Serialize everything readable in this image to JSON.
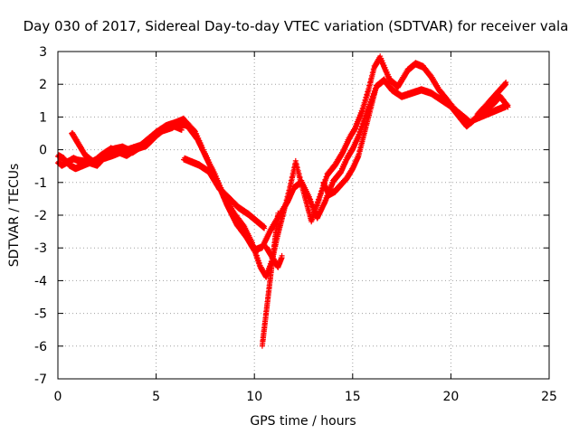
{
  "chart_data": {
    "type": "scatter",
    "title": "Day 030 of 2017, Sidereal Day-to-day VTEC variation (SDTVAR) for receiver vala",
    "xlabel": "GPS time / hours",
    "ylabel": "SDTVAR / TECUs",
    "xlim": [
      0,
      25
    ],
    "ylim": [
      -7,
      3
    ],
    "xticks": [
      "0",
      "5",
      "10",
      "15",
      "20",
      "25"
    ],
    "yticks": [
      "3",
      "2",
      "1",
      "0",
      "-1",
      "-2",
      "-3",
      "-4",
      "-5",
      "-6",
      "-7"
    ],
    "grid": true,
    "legend": "none",
    "marker": "plus",
    "color": "#ff0000",
    "series": [
      {
        "x": [
          0.0,
          0.2,
          0.5,
          0.8,
          1.0,
          1.5,
          2.0,
          2.3,
          2.8,
          3.2,
          3.7,
          4.2,
          4.6,
          5.0,
          5.5,
          6.0,
          6.4,
          7.0,
          7.5,
          8.0,
          8.5,
          9.0,
          9.5,
          9.9,
          10.3,
          10.6,
          10.9,
          11.2,
          11.5,
          11.8,
          12.1,
          12.5,
          12.9,
          13.3,
          13.7,
          14.1,
          14.5,
          14.8,
          15.1,
          15.5,
          15.8,
          16.1,
          16.4,
          16.9,
          17.3,
          17.8,
          18.2,
          18.6,
          19.0,
          19.4,
          19.8,
          20.2,
          20.6,
          21.0,
          21.4,
          21.8,
          22.2,
          22.5,
          22.9
        ],
        "y": [
          -0.4,
          -0.5,
          -0.4,
          -0.3,
          -0.35,
          -0.4,
          -0.5,
          -0.3,
          -0.2,
          -0.1,
          0.0,
          0.1,
          0.3,
          0.5,
          0.7,
          0.8,
          0.9,
          0.5,
          -0.2,
          -0.8,
          -1.5,
          -2.0,
          -2.4,
          -2.9,
          -3.6,
          -3.9,
          -3.4,
          -2.6,
          -1.9,
          -1.2,
          -0.4,
          -1.3,
          -2.2,
          -1.5,
          -0.8,
          -0.5,
          -0.1,
          0.3,
          0.6,
          1.2,
          1.8,
          2.5,
          2.8,
          2.1,
          1.9,
          2.4,
          2.6,
          2.5,
          2.2,
          1.8,
          1.5,
          1.2,
          1.0,
          0.8,
          1.0,
          1.2,
          1.4,
          1.6,
          1.3
        ]
      },
      {
        "x": [
          0.0,
          0.3,
          0.6,
          0.9,
          1.3,
          1.7,
          2.1,
          2.5,
          2.9,
          3.3,
          3.8,
          4.3,
          4.8,
          5.3,
          5.8,
          6.2,
          6.6,
          7.1,
          7.6,
          8.1,
          8.6,
          9.1,
          9.6,
          10.0,
          10.4,
          10.8,
          11.3,
          11.7,
          12.0,
          12.4,
          12.8,
          13.2,
          13.6,
          14.0,
          14.4,
          14.7,
          15.0,
          15.3,
          15.6,
          15.9,
          16.2,
          16.6,
          17.0,
          17.5,
          18.0,
          18.5,
          19.0,
          19.5,
          20.0,
          20.4,
          20.8,
          21.2,
          21.6,
          22.0,
          22.4,
          22.8
        ],
        "y": [
          -0.2,
          -0.3,
          -0.5,
          -0.6,
          -0.5,
          -0.4,
          -0.3,
          -0.1,
          0.0,
          0.05,
          -0.1,
          0.1,
          0.35,
          0.55,
          0.65,
          0.8,
          0.7,
          0.3,
          -0.3,
          -1.0,
          -1.7,
          -2.3,
          -2.7,
          -3.1,
          -3.0,
          -2.5,
          -2.0,
          -1.6,
          -1.2,
          -1.0,
          -1.5,
          -2.1,
          -1.6,
          -1.0,
          -0.7,
          -0.3,
          0.0,
          0.4,
          0.9,
          1.4,
          1.9,
          2.1,
          1.8,
          1.6,
          1.7,
          1.8,
          1.7,
          1.5,
          1.3,
          1.0,
          0.7,
          0.9,
          1.0,
          1.1,
          1.2,
          1.3
        ]
      },
      {
        "x": [
          0.7,
          1.0,
          1.4,
          1.8,
          2.2,
          2.7,
          3.1,
          3.5,
          4.0,
          4.5,
          5.0,
          5.4,
          5.9,
          6.3
        ],
        "y": [
          0.5,
          0.2,
          -0.2,
          -0.4,
          -0.2,
          0.0,
          -0.1,
          -0.2,
          0.0,
          0.1,
          0.4,
          0.6,
          0.7,
          0.6
        ]
      },
      {
        "x": [
          6.4,
          6.8,
          7.2,
          7.7,
          8.2,
          8.7,
          9.2,
          9.7,
          10.1,
          10.5
        ],
        "y": [
          -0.3,
          -0.4,
          -0.5,
          -0.7,
          -1.2,
          -1.5,
          -1.8,
          -2.0,
          -2.2,
          -2.4
        ]
      },
      {
        "x": [
          10.6,
          10.8,
          11.0,
          11.2,
          11.4
        ],
        "y": [
          -3.0,
          -3.2,
          -3.4,
          -3.6,
          -3.3
        ]
      },
      {
        "x": [
          10.4,
          10.5,
          10.6,
          10.7,
          10.8,
          10.9,
          11.0,
          11.1,
          11.2
        ],
        "y": [
          -6.0,
          -5.5,
          -5.0,
          -4.5,
          -4.0,
          -3.5,
          -3.0,
          -2.5,
          -2.0
        ]
      },
      {
        "x": [
          13.5,
          13.8,
          14.1,
          14.4,
          14.7,
          15.0,
          15.3,
          15.6,
          15.9,
          16.2
        ],
        "y": [
          -1.0,
          -1.4,
          -1.3,
          -1.1,
          -0.9,
          -0.6,
          -0.2,
          0.5,
          1.2,
          1.9
        ]
      },
      {
        "x": [
          21.3,
          21.6,
          21.9,
          22.2,
          22.5,
          22.8
        ],
        "y": [
          1.0,
          1.2,
          1.4,
          1.6,
          1.8,
          2.0
        ]
      }
    ]
  }
}
